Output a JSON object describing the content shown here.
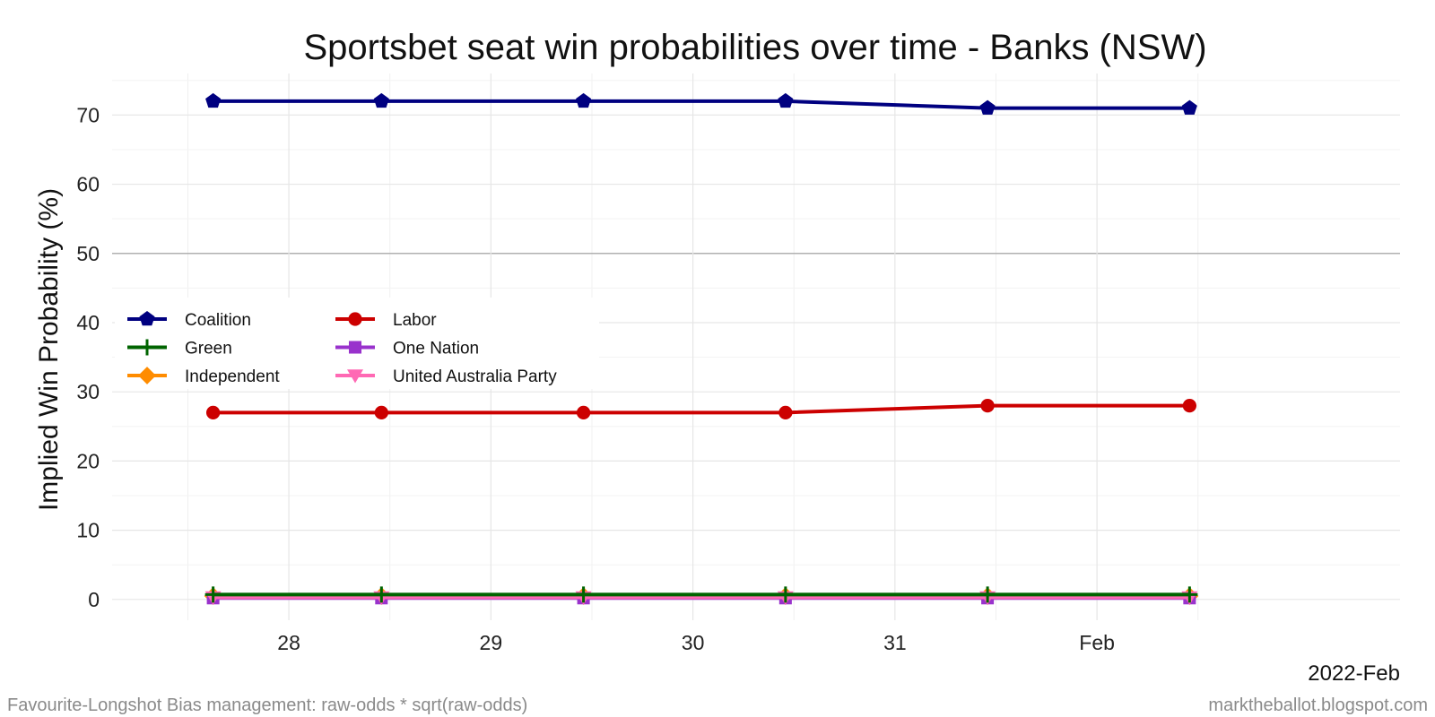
{
  "chart_data": {
    "type": "line",
    "title": "Sportsbet seat win probabilities over time - Banks (NSW)",
    "ylabel": "Implied Win Probability (%)",
    "xlabel": "",
    "x_axis_note": "2022-Feb",
    "ylim": [
      -3,
      76
    ],
    "y_ticks": [
      0,
      10,
      20,
      30,
      40,
      50,
      60,
      70
    ],
    "reference_line": 50,
    "x_domain": [
      "2022-01-27 03:00",
      "2022-02-02 12:00"
    ],
    "x_ticks": [
      {
        "date": "2022-01-28",
        "label": "28"
      },
      {
        "date": "2022-01-29",
        "label": "29"
      },
      {
        "date": "2022-01-30",
        "label": "30"
      },
      {
        "date": "2022-01-31",
        "label": "31"
      },
      {
        "date": "2022-02-01",
        "label": "Feb"
      }
    ],
    "x": [
      "2022-01-27 15:00",
      "2022-01-28 11:00",
      "2022-01-29 11:00",
      "2022-01-30 11:00",
      "2022-01-31 11:00",
      "2022-02-01 11:00"
    ],
    "series": [
      {
        "name": "Coalition",
        "color": "#000080",
        "marker": "pentagon",
        "values": [
          72,
          72,
          72,
          72,
          71,
          71
        ]
      },
      {
        "name": "Labor",
        "color": "#cc0000",
        "marker": "circle",
        "values": [
          27,
          27,
          27,
          27,
          28,
          28
        ]
      },
      {
        "name": "Green",
        "color": "#006400",
        "marker": "plus",
        "values": [
          0.7,
          0.7,
          0.7,
          0.7,
          0.7,
          0.7
        ]
      },
      {
        "name": "One Nation",
        "color": "#9932cc",
        "marker": "square",
        "values": [
          0.2,
          0.2,
          0.2,
          0.2,
          0.2,
          0.2
        ]
      },
      {
        "name": "Independent",
        "color": "#ff8c00",
        "marker": "diamond",
        "values": [
          0.5,
          0.5,
          0.5,
          0.5,
          0.5,
          0.5
        ]
      },
      {
        "name": "United Australia Party",
        "color": "#ff69b4",
        "marker": "triangle-down",
        "values": [
          0.3,
          0.3,
          0.3,
          0.3,
          0.3,
          0.3
        ]
      }
    ],
    "draw_order": [
      "Independent",
      "One Nation",
      "United Australia Party",
      "Green",
      "Labor",
      "Coalition"
    ],
    "legend": {
      "placement": "left-center",
      "columns": 2
    },
    "grid": true
  },
  "footer": {
    "left": "Favourite-Longshot Bias management: raw-odds * sqrt(raw-odds)",
    "right": "marktheballot.blogspot.com"
  }
}
